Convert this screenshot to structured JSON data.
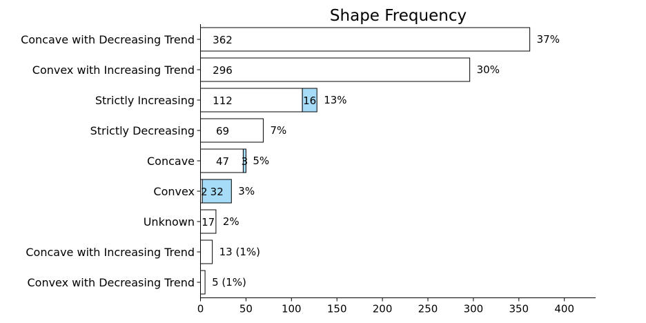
{
  "chart_data": {
    "type": "bar",
    "orientation": "horizontal",
    "stacked": true,
    "title": "Shape Frequency",
    "xlabel": "",
    "ylabel": "",
    "xlim": [
      0,
      432
    ],
    "x_ticks": [
      0,
      50,
      100,
      150,
      200,
      250,
      300,
      350,
      400
    ],
    "grid": false,
    "legend": "none",
    "colors": {
      "primary": "#ffffff",
      "secondary": "#a6dcf7",
      "edge": "#000000"
    },
    "categories": [
      "Concave with Decreasing Trend",
      "Convex with Increasing Trend",
      "Strictly Increasing",
      "Strictly Decreasing",
      "Concave",
      "Convex",
      "Unknown",
      "Concave with Increasing Trend",
      "Convex with Decreasing Trend"
    ],
    "series": [
      {
        "values": [
          362,
          296,
          112,
          69,
          47,
          2,
          17,
          13,
          5
        ]
      },
      {
        "values": [
          0,
          0,
          16,
          0,
          3,
          32,
          0,
          0,
          0
        ]
      }
    ],
    "inside_labels": [
      [
        "362",
        ""
      ],
      [
        "296",
        ""
      ],
      [
        "112",
        "16"
      ],
      [
        "69",
        ""
      ],
      [
        "47",
        "3"
      ],
      [
        "2",
        "32"
      ],
      [
        "17",
        ""
      ],
      [
        "",
        ""
      ],
      [
        "",
        ""
      ]
    ],
    "outside_labels": [
      "37%",
      "30%",
      "13%",
      "7%",
      "5%",
      "3%",
      "2%",
      "13 (1%)",
      "5 (1%)"
    ]
  }
}
